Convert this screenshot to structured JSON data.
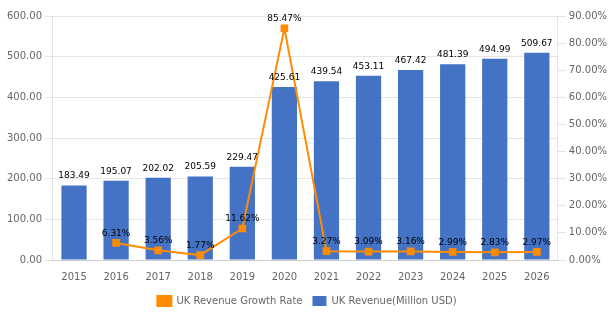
{
  "chart_data": {
    "type": "bar",
    "categories": [
      "2015",
      "2016",
      "2017",
      "2018",
      "2019",
      "2020",
      "2021",
      "2022",
      "2023",
      "2024",
      "2025",
      "2026"
    ],
    "series": [
      {
        "name": "UK Revenue(Million USD)",
        "type": "bar",
        "color": "#4472C4",
        "data_labels": true,
        "values": [
          183.49,
          195.07,
          202.02,
          205.59,
          229.47,
          425.61,
          439.54,
          453.11,
          467.42,
          481.39,
          494.99,
          509.67
        ]
      },
      {
        "name": "UK Revenue Growth Rate",
        "type": "line",
        "axis": "y2",
        "color": "#FF8C00",
        "marker": "square",
        "data_labels": true,
        "values": [
          null,
          6.31,
          3.56,
          1.77,
          11.62,
          85.47,
          3.27,
          3.09,
          3.16,
          2.99,
          2.83,
          2.97
        ],
        "value_labels": [
          null,
          "6.31%",
          "3.56%",
          "1.77%",
          "11.62%",
          "85.47%",
          "3.27%",
          "3.09%",
          "3.16%",
          "2.99%",
          "2.83%",
          "2.97%"
        ]
      }
    ],
    "ylim": [
      0,
      600
    ],
    "yticks": [
      {
        "value": 0,
        "label": "0.00"
      },
      {
        "value": 100,
        "label": "100.00"
      },
      {
        "value": 200,
        "label": "200.00"
      },
      {
        "value": 300,
        "label": "300.00"
      },
      {
        "value": 400,
        "label": "400.00"
      },
      {
        "value": 500,
        "label": "500.00"
      },
      {
        "value": 600,
        "label": "600.00"
      }
    ],
    "y2lim": [
      0,
      90
    ],
    "y2ticks": [
      {
        "value": 0,
        "label": "0.00%"
      },
      {
        "value": 10,
        "label": "10.00%"
      },
      {
        "value": 20,
        "label": "20.00%"
      },
      {
        "value": 30,
        "label": "30.00%"
      },
      {
        "value": 40,
        "label": "40.00%"
      },
      {
        "value": 50,
        "label": "50.00%"
      },
      {
        "value": 60,
        "label": "60.00%"
      },
      {
        "value": 70,
        "label": "70.00%"
      },
      {
        "value": 80,
        "label": "80.00%"
      },
      {
        "value": 90,
        "label": "90.00%"
      }
    ],
    "grid": true,
    "legend": "bottom"
  }
}
